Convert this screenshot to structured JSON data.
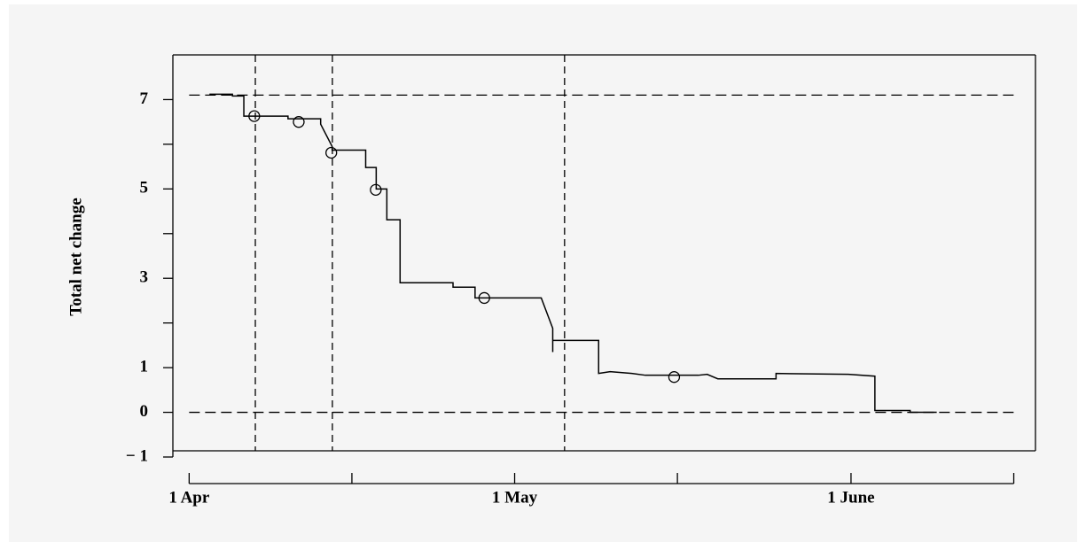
{
  "chart_data": {
    "type": "step",
    "y_label": "Total net change",
    "xlim": [
      -1.5,
      78
    ],
    "ylim": [
      -1,
      8
    ],
    "xticks": [
      {
        "value": 0,
        "label": "1 Apr"
      },
      {
        "value": 30,
        "label": "1 May"
      },
      {
        "value": 61,
        "label": "1 June"
      }
    ],
    "xminor": [
      15,
      45,
      76
    ],
    "yticks": [
      {
        "value": -1,
        "label": "− 1"
      },
      0,
      1,
      3,
      5,
      7
    ],
    "yminor": [
      2,
      4,
      6
    ],
    "color": "#000000",
    "x": [
      1.87,
      3.99,
      3.99,
      5.04,
      5.04,
      9.11,
      9.11,
      12.12,
      12.12,
      13.18,
      13.18,
      16.27,
      16.27,
      17.24,
      17.24,
      18.22,
      18.22,
      19.44,
      19.44,
      24.32,
      24.32,
      26.35,
      26.35,
      32.45,
      33.51,
      33.51,
      33.51,
      37.74,
      37.74,
      38.8,
      40.8,
      42.05,
      46.93,
      47.74,
      48.72,
      54.09,
      54.09,
      60.76,
      63.2,
      63.2,
      66.45,
      66.45,
      68.9
    ],
    "values": [
      7.12,
      7.12,
      7.08,
      7.08,
      6.63,
      6.63,
      6.57,
      6.57,
      6.45,
      5.95,
      5.87,
      5.87,
      5.48,
      5.48,
      5.0,
      5.0,
      4.31,
      4.31,
      2.9,
      2.9,
      2.8,
      2.8,
      2.56,
      2.56,
      1.88,
      1.35,
      1.61,
      1.61,
      0.87,
      0.91,
      0.87,
      0.83,
      0.83,
      0.85,
      0.75,
      0.75,
      0.87,
      0.85,
      0.81,
      0.04,
      0.04,
      0,
      0
    ],
    "markers": {
      "x": [
        6.0,
        10.1,
        13.1,
        17.2,
        27.2,
        44.7
      ],
      "values": [
        6.63,
        6.5,
        5.81,
        4.98,
        2.56,
        0.79
      ]
    },
    "reference_lines": {
      "x": [
        6.1,
        13.2,
        34.6
      ],
      "y": [
        7.1,
        0
      ]
    }
  }
}
